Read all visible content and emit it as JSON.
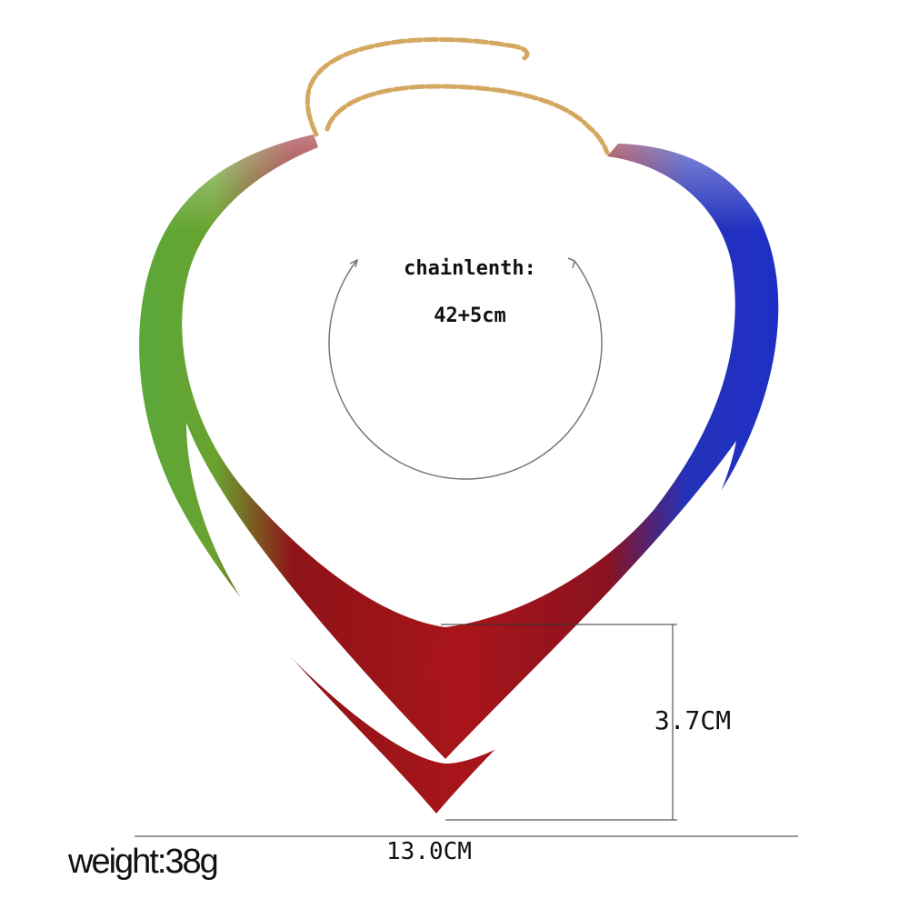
{
  "chain_label": "chainlenth:",
  "chain_length": "42+5cm",
  "height_label": "3.7CM",
  "width_label": "13.0CM",
  "weight_label": "weight:38g"
}
